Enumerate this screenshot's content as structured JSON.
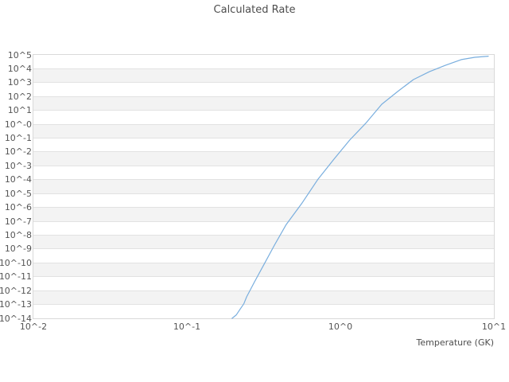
{
  "chart_data": {
    "type": "line",
    "title": "Calculated Rate",
    "xlabel": "Temperature (GK)",
    "ylabel": "",
    "x_scale": "log",
    "y_scale": "log",
    "xlim": [
      0.01,
      10
    ],
    "ylim": [
      1e-14,
      100000
    ],
    "grid": "horizontal-bands",
    "legend": "none",
    "line_color": "#79aede",
    "x_tick_labels": [
      "10^-2",
      "10^-1",
      "10^0",
      "10^1"
    ],
    "x_tick_exponents": [
      -2,
      -1,
      0,
      1
    ],
    "y_tick_labels": [
      "10^5",
      "10^4",
      "10^3",
      "10^2",
      "10^1",
      "10^-0",
      "10^-1",
      "10^-2",
      "10^-3",
      "10^-4",
      "10^-5",
      "10^-6",
      "10^-7",
      "10^-8",
      "10^-9",
      "10^-10",
      "10^-11",
      "10^-12",
      "10^-13",
      "10^-14"
    ],
    "y_tick_exponents": [
      5,
      4,
      3,
      2,
      1,
      0,
      -1,
      -2,
      -3,
      -4,
      -5,
      -6,
      -7,
      -8,
      -9,
      -10,
      -11,
      -12,
      -13,
      -14
    ],
    "series": [
      {
        "name": "Calculated Rate",
        "points_t_gk_log10rate": [
          [
            0.197,
            -14.0
          ],
          [
            0.21,
            -13.75
          ],
          [
            0.222,
            -13.35
          ],
          [
            0.235,
            -12.95
          ],
          [
            0.245,
            -12.45
          ],
          [
            0.276,
            -11.36
          ],
          [
            0.322,
            -10.0
          ],
          [
            0.372,
            -8.72
          ],
          [
            0.444,
            -7.23
          ],
          [
            0.563,
            -5.68
          ],
          [
            0.715,
            -3.96
          ],
          [
            0.908,
            -2.52
          ],
          [
            1.15,
            -1.14
          ],
          [
            1.46,
            0.06
          ],
          [
            1.86,
            1.44
          ],
          [
            2.36,
            2.36
          ],
          [
            2.99,
            3.22
          ],
          [
            3.8,
            3.79
          ],
          [
            4.83,
            4.25
          ],
          [
            6.13,
            4.66
          ],
          [
            7.51,
            4.83
          ],
          [
            9.2,
            4.91
          ]
        ]
      }
    ]
  }
}
